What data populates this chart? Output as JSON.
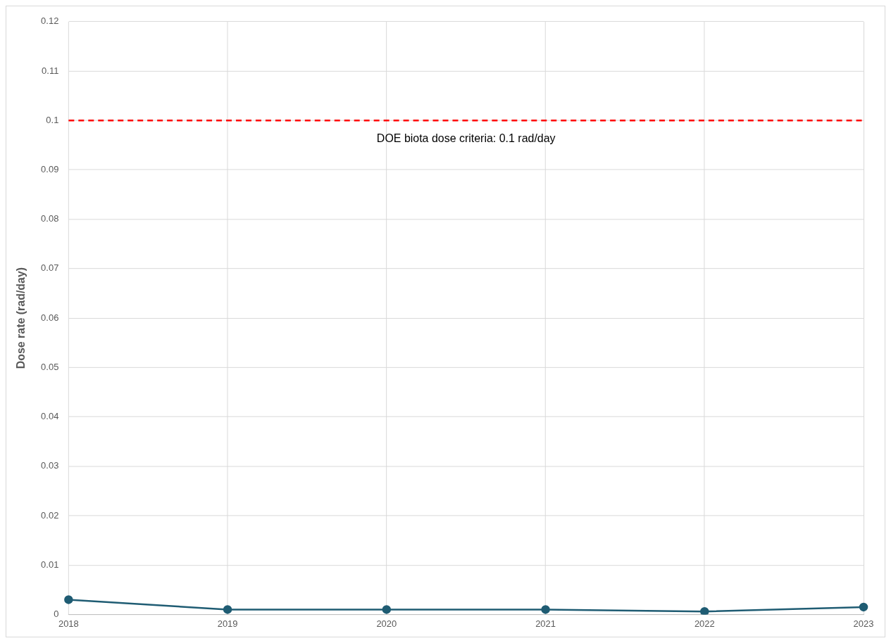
{
  "chart_data": {
    "type": "line",
    "ylabel": "Dose rate (rad/day)",
    "categories": [
      "2018",
      "2019",
      "2020",
      "2021",
      "2022",
      "2023"
    ],
    "series": [
      {
        "color": "#1f5c73",
        "values": [
          0.003,
          0.001,
          0.001,
          0.001,
          0.0006,
          0.0015
        ]
      }
    ],
    "ylim": [
      0,
      0.12
    ],
    "yticks": [
      0,
      0.01,
      0.02,
      0.03,
      0.04,
      0.05,
      0.06,
      0.07,
      0.08,
      0.09,
      0.1,
      0.11,
      0.12
    ],
    "ref_lines": [
      {
        "axis": "y",
        "value": 0.1,
        "label": "DOE biota dose criteria: 0.1 rad/day",
        "color": "#ff0000",
        "line_style": "dashed"
      }
    ],
    "grid": true,
    "legend": false,
    "marker": "circle",
    "line_style": "solid"
  }
}
